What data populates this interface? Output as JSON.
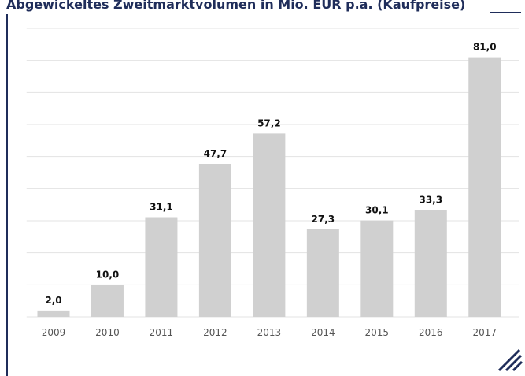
{
  "chart_data": {
    "type": "bar",
    "title": "Abgewickeltes Zweitmarktvolumen in Mio. EUR p.a. (Kaufpreise)",
    "categories": [
      "2009",
      "2010",
      "2011",
      "2012",
      "2013",
      "2014",
      "2015",
      "2016",
      "2017"
    ],
    "values": [
      2.0,
      10.0,
      31.1,
      47.7,
      57.2,
      27.3,
      30.1,
      33.3,
      81.0
    ],
    "value_labels": [
      "2,0",
      "10,0",
      "31,1",
      "47,7",
      "57,2",
      "27,3",
      "30,1",
      "33,3",
      "81,0"
    ],
    "color": "#d0d0d0",
    "ylim": [
      0,
      90
    ],
    "yticks": [
      0,
      10,
      20,
      30,
      40,
      50,
      60,
      70,
      80,
      90
    ],
    "grid": true
  }
}
